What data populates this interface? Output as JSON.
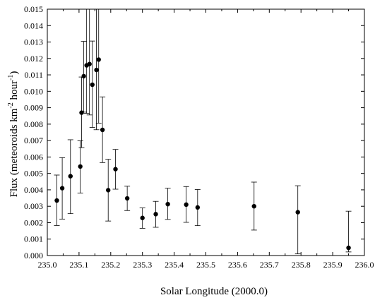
{
  "chart_data": {
    "type": "scatter",
    "xlabel": "Solar Longitude (2000.0)",
    "ylabel_main": "Flux (meteoroids km",
    "ylabel_sup1": "-2",
    "ylabel_mid": " hour",
    "ylabel_sup2": "-1",
    "ylabel_end": ")",
    "xlim": [
      235.0,
      236.0
    ],
    "ylim": [
      0.0,
      0.015
    ],
    "x_ticks": [
      235.0,
      235.1,
      235.2,
      235.3,
      235.4,
      235.5,
      235.6,
      235.7,
      235.8,
      235.9,
      236.0
    ],
    "x_tick_labels": [
      "235.0",
      "235.1",
      "235.2",
      "235.3",
      "235.4",
      "235.5",
      "235.6",
      "235.7",
      "235.8",
      "235.9",
      "236.0"
    ],
    "y_ticks": [
      0.0,
      0.001,
      0.002,
      0.003,
      0.004,
      0.005,
      0.006,
      0.007,
      0.008,
      0.009,
      0.01,
      0.011,
      0.012,
      0.013,
      0.014,
      0.015
    ],
    "y_tick_labels": [
      "0.000",
      "0.001",
      "0.002",
      "0.003",
      "0.004",
      "0.005",
      "0.006",
      "0.007",
      "0.008",
      "0.009",
      "0.010",
      "0.011",
      "0.012",
      "0.013",
      "0.014",
      "0.015"
    ],
    "grid": false,
    "marker_color": "#000000",
    "points": [
      {
        "x": 235.03,
        "y": 0.00335,
        "ylo": 0.00183,
        "yhi": 0.0049
      },
      {
        "x": 235.047,
        "y": 0.0041,
        "ylo": 0.00222,
        "yhi": 0.00596
      },
      {
        "x": 235.073,
        "y": 0.00483,
        "ylo": 0.00255,
        "yhi": 0.00705
      },
      {
        "x": 235.104,
        "y": 0.00542,
        "ylo": 0.0038,
        "yhi": 0.00698
      },
      {
        "x": 235.108,
        "y": 0.0087,
        "ylo": 0.00657,
        "yhi": 0.01087
      },
      {
        "x": 235.115,
        "y": 0.01092,
        "ylo": 0.00873,
        "yhi": 0.01304
      },
      {
        "x": 235.124,
        "y": 0.01158,
        "ylo": 0.00866,
        "yhi": 0.015
      },
      {
        "x": 235.133,
        "y": 0.01166,
        "ylo": 0.00856,
        "yhi": 0.015
      },
      {
        "x": 235.142,
        "y": 0.0104,
        "ylo": 0.0078,
        "yhi": 0.01306
      },
      {
        "x": 235.155,
        "y": 0.0113,
        "ylo": 0.00766,
        "yhi": 0.015
      },
      {
        "x": 235.162,
        "y": 0.01193,
        "ylo": 0.00806,
        "yhi": 0.015
      },
      {
        "x": 235.174,
        "y": 0.00765,
        "ylo": 0.00566,
        "yhi": 0.00966
      },
      {
        "x": 235.192,
        "y": 0.00398,
        "ylo": 0.0021,
        "yhi": 0.00586
      },
      {
        "x": 235.215,
        "y": 0.00526,
        "ylo": 0.00404,
        "yhi": 0.00646
      },
      {
        "x": 235.252,
        "y": 0.00348,
        "ylo": 0.00274,
        "yhi": 0.00422
      },
      {
        "x": 235.3,
        "y": 0.00229,
        "ylo": 0.00166,
        "yhi": 0.0029
      },
      {
        "x": 235.342,
        "y": 0.00252,
        "ylo": 0.00172,
        "yhi": 0.0033
      },
      {
        "x": 235.38,
        "y": 0.00313,
        "ylo": 0.0022,
        "yhi": 0.0041
      },
      {
        "x": 235.438,
        "y": 0.0031,
        "ylo": 0.00202,
        "yhi": 0.0042
      },
      {
        "x": 235.474,
        "y": 0.00293,
        "ylo": 0.00182,
        "yhi": 0.00402
      },
      {
        "x": 235.652,
        "y": 0.003,
        "ylo": 0.00155,
        "yhi": 0.00447
      },
      {
        "x": 235.79,
        "y": 0.00264,
        "ylo": 0.0001,
        "yhi": 0.00425
      },
      {
        "x": 235.95,
        "y": 0.00047,
        "ylo": 0.00022,
        "yhi": 0.0027
      }
    ]
  }
}
